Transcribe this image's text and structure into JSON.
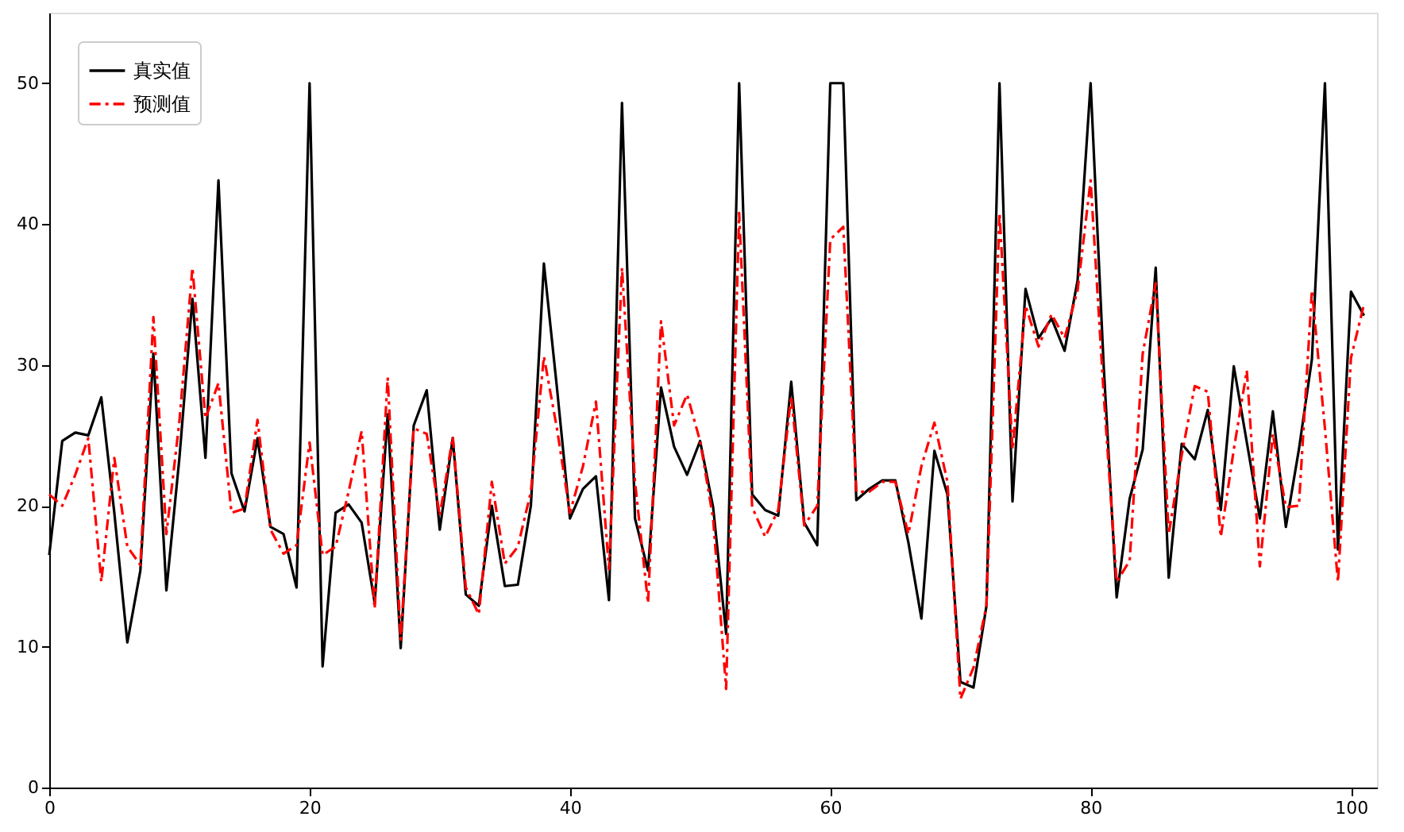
{
  "chart_data": {
    "type": "line",
    "x": [
      0,
      1,
      2,
      3,
      4,
      5,
      6,
      7,
      8,
      9,
      10,
      11,
      12,
      13,
      14,
      15,
      16,
      17,
      18,
      19,
      20,
      21,
      22,
      23,
      24,
      25,
      26,
      27,
      28,
      29,
      30,
      31,
      32,
      33,
      34,
      35,
      36,
      37,
      38,
      39,
      40,
      41,
      42,
      43,
      44,
      45,
      46,
      47,
      48,
      49,
      50,
      51,
      52,
      53,
      54,
      55,
      56,
      57,
      58,
      59,
      60,
      61,
      62,
      63,
      64,
      65,
      66,
      67,
      68,
      69,
      70,
      71,
      72,
      73,
      74,
      75,
      76,
      77,
      78,
      79,
      80,
      81,
      82,
      83,
      84,
      85,
      86,
      87,
      88,
      89,
      90,
      91,
      92,
      93,
      94,
      95,
      96,
      97,
      98,
      99,
      100,
      101
    ],
    "series": [
      {
        "name": "真实值",
        "color": "#000000",
        "line_style": "solid",
        "values": [
          16.5,
          24.6,
          25.2,
          25,
          27.7,
          19.5,
          10.3,
          15.4,
          30.8,
          14,
          23.4,
          34.7,
          23.4,
          43.1,
          22.3,
          19.6,
          24.8,
          18.5,
          18,
          14.2,
          50,
          8.6,
          19.5,
          20.1,
          18.8,
          13.1,
          26.5,
          9.9,
          25.7,
          28.2,
          18.3,
          24.8,
          13.7,
          12.9,
          20,
          14.3,
          14.4,
          20,
          37.2,
          28.4,
          19.1,
          21.2,
          22.1,
          13.3,
          48.6,
          19.1,
          15.4,
          28.4,
          24.2,
          22.2,
          24.6,
          19.9,
          10.9,
          50,
          20.8,
          19.7,
          19.3,
          28.8,
          18.8,
          17.2,
          50,
          50,
          20.4,
          21.2,
          21.8,
          21.8,
          17.4,
          12,
          23.9,
          20.8,
          7.5,
          7.1,
          12.9,
          50,
          20.3,
          35.4,
          31.9,
          33.3,
          31,
          36,
          50,
          30,
          13.5,
          20.5,
          24,
          36.9,
          14.9,
          24.4,
          23.3,
          26.8,
          19.7,
          29.9,
          24.5,
          19.1,
          26.7,
          18.5,
          24,
          30.4,
          50,
          16.9,
          35.2,
          33.5
        ]
      },
      {
        "name": "预测值",
        "color": "#ff0000",
        "line_style": "dashed",
        "values": [
          20.8,
          20,
          22.2,
          24.8,
          14.6,
          23.4,
          17.1,
          15.8,
          33.4,
          18,
          26,
          36.9,
          26.2,
          28.7,
          19.5,
          19.8,
          26.1,
          18.3,
          16.6,
          17.2,
          24.5,
          16.5,
          17.1,
          21,
          25.3,
          12.7,
          29.1,
          10.5,
          25.5,
          25.1,
          19.3,
          24.9,
          14.2,
          12.3,
          21.7,
          15.9,
          17.1,
          21,
          30.6,
          25.5,
          19.5,
          22.8,
          27.4,
          15.5,
          36.9,
          21.7,
          13.1,
          33.1,
          25.7,
          27.9,
          24.6,
          19.1,
          7,
          40.8,
          19.9,
          17.8,
          19.7,
          27.8,
          18.6,
          20,
          38.9,
          39.8,
          21,
          21,
          21.7,
          21.7,
          18,
          22.8,
          25.9,
          21.7,
          6.3,
          8.5,
          12.9,
          40.8,
          24,
          34.2,
          31.3,
          33.6,
          31.9,
          35.3,
          43.1,
          28,
          14.6,
          16.1,
          30.8,
          35.8,
          18,
          23.6,
          28.5,
          28.1,
          17.8,
          24,
          29.6,
          15.7,
          25.1,
          19.9,
          20,
          35.3,
          25.5,
          14.6,
          30.5,
          34.3
        ]
      }
    ],
    "xlim": [
      0,
      102
    ],
    "ylim": [
      0,
      55
    ],
    "xticks": [
      0,
      20,
      40,
      60,
      80,
      100
    ],
    "yticks": [
      0,
      10,
      20,
      30,
      40,
      50
    ],
    "grid": false,
    "legend": "top left",
    "marker": "none"
  }
}
